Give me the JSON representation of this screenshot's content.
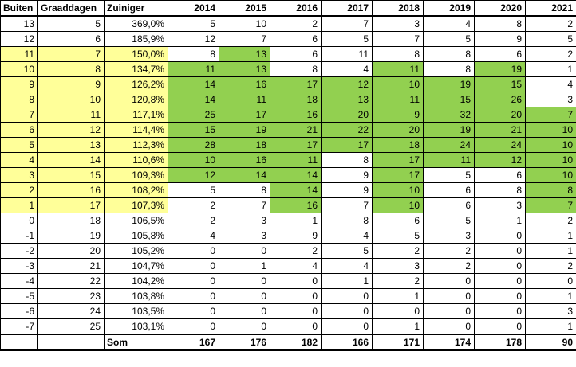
{
  "colors": {
    "highlight_yellow": "#FFFF99",
    "highlight_green": "#92D050",
    "grid": "#000000"
  },
  "table": {
    "headers": [
      "Buiten",
      "Graaddagen",
      "Zuiniger",
      "2014",
      "2015",
      "2016",
      "2017",
      "2018",
      "2019",
      "2020",
      "2021"
    ],
    "rows": [
      {
        "buiten": "13",
        "graaddagen": "5",
        "zuiniger": "369,0%",
        "yellow": false,
        "values": [
          "5",
          "10",
          "2",
          "7",
          "3",
          "4",
          "8",
          "2"
        ],
        "green": [
          0,
          0,
          0,
          0,
          0,
          0,
          0,
          0
        ]
      },
      {
        "buiten": "12",
        "graaddagen": "6",
        "zuiniger": "185,9%",
        "yellow": false,
        "values": [
          "12",
          "7",
          "6",
          "5",
          "7",
          "5",
          "9",
          "5"
        ],
        "green": [
          0,
          0,
          0,
          0,
          0,
          0,
          0,
          0
        ]
      },
      {
        "buiten": "11",
        "graaddagen": "7",
        "zuiniger": "150,0%",
        "yellow": true,
        "values": [
          "8",
          "13",
          "6",
          "11",
          "8",
          "8",
          "6",
          "2"
        ],
        "green": [
          0,
          1,
          0,
          0,
          0,
          0,
          0,
          0
        ]
      },
      {
        "buiten": "10",
        "graaddagen": "8",
        "zuiniger": "134,7%",
        "yellow": true,
        "values": [
          "11",
          "13",
          "8",
          "4",
          "11",
          "8",
          "19",
          "1"
        ],
        "green": [
          1,
          1,
          0,
          0,
          1,
          0,
          1,
          0
        ]
      },
      {
        "buiten": "9",
        "graaddagen": "9",
        "zuiniger": "126,2%",
        "yellow": true,
        "values": [
          "14",
          "16",
          "17",
          "12",
          "10",
          "19",
          "15",
          "4"
        ],
        "green": [
          1,
          1,
          1,
          1,
          1,
          1,
          1,
          0
        ]
      },
      {
        "buiten": "8",
        "graaddagen": "10",
        "zuiniger": "120,8%",
        "yellow": true,
        "values": [
          "14",
          "11",
          "18",
          "13",
          "11",
          "15",
          "26",
          "3"
        ],
        "green": [
          1,
          1,
          1,
          1,
          1,
          1,
          1,
          0
        ]
      },
      {
        "buiten": "7",
        "graaddagen": "11",
        "zuiniger": "117,1%",
        "yellow": true,
        "values": [
          "25",
          "17",
          "16",
          "20",
          "9",
          "32",
          "20",
          "7"
        ],
        "green": [
          1,
          1,
          1,
          1,
          1,
          1,
          1,
          1
        ]
      },
      {
        "buiten": "6",
        "graaddagen": "12",
        "zuiniger": "114,4%",
        "yellow": true,
        "values": [
          "15",
          "19",
          "21",
          "22",
          "20",
          "19",
          "21",
          "10"
        ],
        "green": [
          1,
          1,
          1,
          1,
          1,
          1,
          1,
          1
        ]
      },
      {
        "buiten": "5",
        "graaddagen": "13",
        "zuiniger": "112,3%",
        "yellow": true,
        "values": [
          "28",
          "18",
          "17",
          "17",
          "18",
          "24",
          "24",
          "10"
        ],
        "green": [
          1,
          1,
          1,
          1,
          1,
          1,
          1,
          1
        ]
      },
      {
        "buiten": "4",
        "graaddagen": "14",
        "zuiniger": "110,6%",
        "yellow": true,
        "values": [
          "10",
          "16",
          "11",
          "8",
          "17",
          "11",
          "12",
          "10"
        ],
        "green": [
          1,
          1,
          1,
          0,
          1,
          1,
          1,
          1
        ]
      },
      {
        "buiten": "3",
        "graaddagen": "15",
        "zuiniger": "109,3%",
        "yellow": true,
        "values": [
          "12",
          "14",
          "14",
          "9",
          "17",
          "5",
          "6",
          "10"
        ],
        "green": [
          1,
          1,
          1,
          0,
          1,
          0,
          0,
          1
        ]
      },
      {
        "buiten": "2",
        "graaddagen": "16",
        "zuiniger": "108,2%",
        "yellow": true,
        "values": [
          "5",
          "8",
          "14",
          "9",
          "10",
          "6",
          "8",
          "8"
        ],
        "green": [
          0,
          0,
          1,
          0,
          1,
          0,
          0,
          1
        ]
      },
      {
        "buiten": "1",
        "graaddagen": "17",
        "zuiniger": "107,3%",
        "yellow": true,
        "values": [
          "2",
          "7",
          "16",
          "7",
          "10",
          "6",
          "3",
          "7"
        ],
        "green": [
          0,
          0,
          1,
          0,
          1,
          0,
          0,
          1
        ]
      },
      {
        "buiten": "0",
        "graaddagen": "18",
        "zuiniger": "106,5%",
        "yellow": false,
        "values": [
          "2",
          "3",
          "1",
          "8",
          "6",
          "5",
          "1",
          "2"
        ],
        "green": [
          0,
          0,
          0,
          0,
          0,
          0,
          0,
          0
        ]
      },
      {
        "buiten": "-1",
        "graaddagen": "19",
        "zuiniger": "105,8%",
        "yellow": false,
        "values": [
          "4",
          "3",
          "9",
          "4",
          "5",
          "3",
          "0",
          "1"
        ],
        "green": [
          0,
          0,
          0,
          0,
          0,
          0,
          0,
          0
        ]
      },
      {
        "buiten": "-2",
        "graaddagen": "20",
        "zuiniger": "105,2%",
        "yellow": false,
        "values": [
          "0",
          "0",
          "2",
          "5",
          "2",
          "2",
          "0",
          "1"
        ],
        "green": [
          0,
          0,
          0,
          0,
          0,
          0,
          0,
          0
        ]
      },
      {
        "buiten": "-3",
        "graaddagen": "21",
        "zuiniger": "104,7%",
        "yellow": false,
        "values": [
          "0",
          "1",
          "4",
          "4",
          "3",
          "2",
          "0",
          "2"
        ],
        "green": [
          0,
          0,
          0,
          0,
          0,
          0,
          0,
          0
        ]
      },
      {
        "buiten": "-4",
        "graaddagen": "22",
        "zuiniger": "104,2%",
        "yellow": false,
        "values": [
          "0",
          "0",
          "0",
          "1",
          "2",
          "0",
          "0",
          "0"
        ],
        "green": [
          0,
          0,
          0,
          0,
          0,
          0,
          0,
          0
        ]
      },
      {
        "buiten": "-5",
        "graaddagen": "23",
        "zuiniger": "103,8%",
        "yellow": false,
        "values": [
          "0",
          "0",
          "0",
          "0",
          "1",
          "0",
          "0",
          "1"
        ],
        "green": [
          0,
          0,
          0,
          0,
          0,
          0,
          0,
          0
        ]
      },
      {
        "buiten": "-6",
        "graaddagen": "24",
        "zuiniger": "103,5%",
        "yellow": false,
        "values": [
          "0",
          "0",
          "0",
          "0",
          "0",
          "0",
          "0",
          "3"
        ],
        "green": [
          0,
          0,
          0,
          0,
          0,
          0,
          0,
          0
        ]
      },
      {
        "buiten": "-7",
        "graaddagen": "25",
        "zuiniger": "103,1%",
        "yellow": false,
        "values": [
          "0",
          "0",
          "0",
          "0",
          "1",
          "0",
          "0",
          "1"
        ],
        "green": [
          0,
          0,
          0,
          0,
          0,
          0,
          0,
          0
        ]
      }
    ],
    "footer": {
      "label": "Som",
      "values": [
        "167",
        "176",
        "182",
        "166",
        "171",
        "174",
        "178",
        "90"
      ]
    }
  }
}
